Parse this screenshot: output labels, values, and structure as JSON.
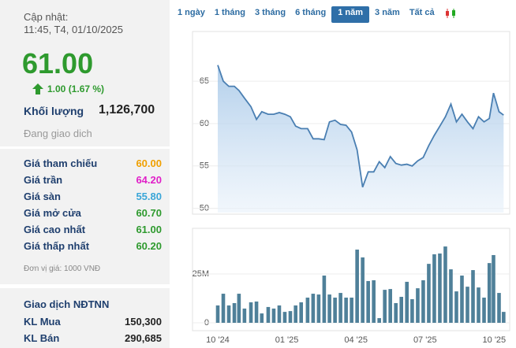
{
  "header": {
    "updated_label": "Cập nhật:",
    "updated_time": "11:45, T4, 01/10/2025"
  },
  "quote": {
    "price": "61.00",
    "change": "1.00 (1.67 %)",
    "volume_label": "Khối lượng",
    "volume": "1,126,700",
    "status": "Đang giao dich"
  },
  "prices": [
    {
      "label": "Giá tham chiếu",
      "value": "60.00",
      "color": "#f0a000"
    },
    {
      "label": "Giá trần",
      "value": "64.20",
      "color": "#e020c8"
    },
    {
      "label": "Giá sàn",
      "value": "55.80",
      "color": "#3aa6d8"
    },
    {
      "label": "Giá mở cửa",
      "value": "60.70",
      "color": "#2e9a2e"
    },
    {
      "label": "Giá cao nhất",
      "value": "61.00",
      "color": "#2e9a2e"
    },
    {
      "label": "Giá thấp nhất",
      "value": "60.20",
      "color": "#2e9a2e"
    }
  ],
  "unit_note": "Đơn vị giá: 1000 VNĐ",
  "foreign": {
    "title": "Giao dịch NĐTNN",
    "rows": [
      [
        "KL Mua",
        "150,300"
      ],
      [
        "KL Bán",
        "290,685"
      ]
    ]
  },
  "tabs": [
    "1 ngày",
    "1 tháng",
    "3 tháng",
    "6 tháng",
    "1 năm",
    "3 năm",
    "Tất cả"
  ],
  "chart_data": [
    {
      "type": "line",
      "x": [
        0,
        0.24,
        0.48,
        0.72,
        0.92,
        1.16,
        1.44,
        1.68,
        1.91,
        2.19,
        2.43,
        2.67,
        2.91,
        3.15,
        3.38,
        3.62,
        3.9,
        4.14,
        4.38,
        4.62,
        4.85,
        5.09,
        5.33,
        5.57,
        5.81,
        6.05,
        6.29,
        6.53,
        6.77,
        7.01,
        7.25,
        7.49,
        7.73,
        7.97,
        8.21,
        8.44,
        8.68,
        8.92,
        9.16,
        9.4,
        9.64,
        9.88,
        10.12,
        10.36,
        10.6,
        10.84,
        11.08,
        11.32,
        11.56,
        11.79,
        11.97,
        12.21,
        12.41
      ],
      "series": [
        {
          "color": "#4a7fb2",
          "values": [
            66.9,
            65.0,
            64.4,
            64.4,
            63.9,
            63.0,
            62.0,
            60.5,
            61.4,
            61.1,
            61.1,
            61.3,
            61.1,
            60.8,
            59.7,
            59.4,
            59.4,
            58.2,
            58.2,
            58.1,
            60.2,
            60.4,
            59.9,
            59.8,
            59.0,
            56.9,
            52.5,
            54.3,
            54.3,
            55.5,
            54.8,
            56.1,
            55.3,
            55.1,
            55.2,
            55.0,
            55.6,
            56.0,
            57.4,
            58.6,
            59.7,
            60.8,
            62.3,
            60.2,
            61.1,
            60.2,
            59.4,
            60.8,
            60.2,
            60.6,
            63.6,
            61.4,
            61.0
          ]
        }
      ],
      "xlim": [
        0,
        12.45
      ],
      "ylim": [
        49.5,
        70.4
      ],
      "yticks": [
        50,
        55,
        60,
        65
      ],
      "grid": true
    },
    {
      "type": "bar",
      "x": [
        0,
        0.24,
        0.48,
        0.72,
        0.92,
        1.16,
        1.44,
        1.68,
        1.91,
        2.19,
        2.43,
        2.67,
        2.91,
        3.15,
        3.38,
        3.62,
        3.9,
        4.14,
        4.38,
        4.62,
        4.85,
        5.09,
        5.33,
        5.57,
        5.81,
        6.05,
        6.29,
        6.53,
        6.77,
        7.01,
        7.25,
        7.49,
        7.73,
        7.97,
        8.21,
        8.44,
        8.68,
        8.92,
        9.16,
        9.4,
        9.64,
        9.88,
        10.12,
        10.36,
        10.6,
        10.84,
        11.08,
        11.32,
        11.56,
        11.79,
        11.97,
        12.21,
        12.41
      ],
      "series": [
        {
          "color": "#4f8099",
          "values": [
            8900000,
            14900000,
            8900000,
            10100000,
            14900000,
            7300000,
            10500000,
            10900000,
            4800000,
            8100000,
            7300000,
            8900000,
            5600000,
            6000000,
            8900000,
            10500000,
            12900000,
            14900000,
            14500000,
            24200000,
            14500000,
            12900000,
            15300000,
            12900000,
            12900000,
            37500000,
            33500000,
            21400000,
            21800000,
            2400000,
            16900000,
            17300000,
            10100000,
            13300000,
            21000000,
            12100000,
            17700000,
            21800000,
            30200000,
            35100000,
            35500000,
            39100000,
            27400000,
            16100000,
            24200000,
            18500000,
            27000000,
            18100000,
            12900000,
            30600000,
            34700000,
            15300000,
            5600000
          ]
        }
      ],
      "xlim": [
        0,
        12.45
      ],
      "ylim": [
        0,
        48400000
      ],
      "yticks": [
        0,
        {
          "value": 25000000,
          "label": "25M"
        }
      ],
      "xticks": [
        {
          "value": 0,
          "label": "10 '24"
        },
        {
          "value": 3,
          "label": "01 '25"
        },
        {
          "value": 6,
          "label": "04 '25"
        },
        {
          "value": 9,
          "label": "07 '25"
        },
        {
          "value": 12,
          "label": "10 '25"
        }
      ],
      "grid": true
    }
  ]
}
